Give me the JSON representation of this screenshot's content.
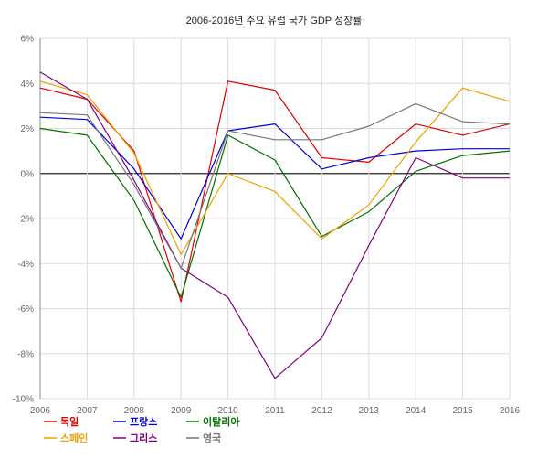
{
  "chart_data": {
    "type": "line",
    "title": "2006-2016년 주요 유럽 국가 GDP 성장률",
    "x": [
      "2006",
      "2007",
      "2008",
      "2009",
      "2010",
      "2011",
      "2012",
      "2013",
      "2014",
      "2015",
      "2016"
    ],
    "ylim": [
      -10,
      6
    ],
    "y_ticks": [
      "6%",
      "4%",
      "2%",
      "0%",
      "-2%",
      "-4%",
      "-6%",
      "-8%",
      "-10%"
    ],
    "grid": true,
    "legend_position": "bottom-left",
    "series": [
      {
        "name": "독일",
        "color": "#e00000",
        "values": [
          3.8,
          3.3,
          1.0,
          -5.7,
          4.1,
          3.7,
          0.7,
          0.5,
          2.2,
          1.7,
          2.2
        ]
      },
      {
        "name": "프랑스",
        "color": "#0000dd",
        "values": [
          2.5,
          2.4,
          0.2,
          -2.9,
          1.9,
          2.2,
          0.2,
          0.7,
          1.0,
          1.1,
          1.1
        ]
      },
      {
        "name": "이탈리아",
        "color": "#007000",
        "values": [
          2.0,
          1.7,
          -1.2,
          -5.5,
          1.7,
          0.6,
          -2.8,
          -1.7,
          0.1,
          0.8,
          1.0
        ]
      },
      {
        "name": "스페인",
        "color": "#f0a000",
        "values": [
          4.1,
          3.5,
          0.9,
          -3.6,
          0.0,
          -0.8,
          -2.9,
          -1.4,
          1.4,
          3.8,
          3.2
        ]
      },
      {
        "name": "그리스",
        "color": "#800080",
        "values": [
          4.5,
          3.3,
          -0.3,
          -4.2,
          -5.5,
          -9.1,
          -7.3,
          -3.2,
          0.7,
          -0.2,
          -0.2
        ]
      },
      {
        "name": "영국",
        "color": "#777777",
        "values": [
          2.7,
          2.6,
          -0.5,
          -4.2,
          1.9,
          1.5,
          1.5,
          2.1,
          3.1,
          2.3,
          2.2
        ]
      }
    ]
  }
}
